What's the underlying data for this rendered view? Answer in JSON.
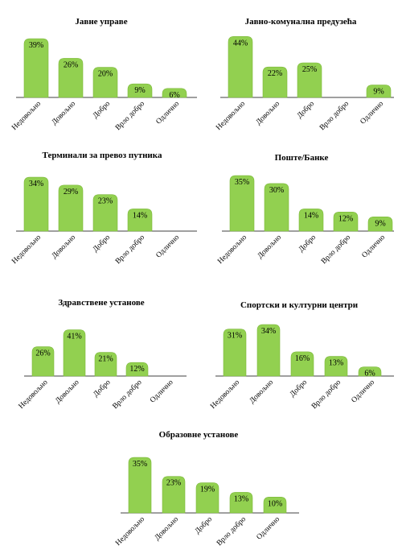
{
  "colors": {
    "bar": "#92d050",
    "bar_stroke": "#7cb83a",
    "axis": "#000000"
  },
  "chart_data": [
    {
      "type": "bar",
      "title": "Јавне управе",
      "categories": [
        "Недовољно",
        "Довољно",
        "Добро",
        "Врло добро",
        "Одлично"
      ],
      "values": [
        39,
        26,
        20,
        9,
        6
      ],
      "labels": [
        "39%",
        "26%",
        "20%",
        "9%",
        "6%"
      ],
      "ylim": [
        0,
        45
      ],
      "grid": false,
      "legend": "none"
    },
    {
      "type": "bar",
      "title": "Јавно-комунална предузећа",
      "categories": [
        "Недовољно",
        "Довољно",
        "Добро",
        "Врло добро",
        "Одлично"
      ],
      "values": [
        44,
        22,
        25,
        0,
        9
      ],
      "labels": [
        "44%",
        "22%",
        "25%",
        "",
        "9%"
      ],
      "ylim": [
        0,
        45
      ],
      "grid": false,
      "legend": "none"
    },
    {
      "type": "bar",
      "title": "Терминали за превоз путника",
      "categories": [
        "Недовољно",
        "Довољно",
        "Добро",
        "Врло добро",
        "Одлично"
      ],
      "values": [
        34,
        29,
        23,
        14,
        0
      ],
      "labels": [
        "34%",
        "29%",
        "23%",
        "14%",
        ""
      ],
      "ylim": [
        0,
        45
      ],
      "grid": false,
      "legend": "none"
    },
    {
      "type": "bar",
      "title": "Поште/Банке",
      "categories": [
        "Недовољно",
        "Довољно",
        "Добро",
        "Врло добро",
        "Одлично"
      ],
      "values": [
        35,
        30,
        14,
        12,
        9
      ],
      "labels": [
        "35%",
        "30%",
        "14%",
        "12%",
        "9%"
      ],
      "ylim": [
        0,
        45
      ],
      "grid": false,
      "legend": "none"
    },
    {
      "type": "bar",
      "title": "Здравствене установе",
      "categories": [
        "Недовољно",
        "Довољно",
        "Добро",
        "Врло добро",
        "Одлично"
      ],
      "values": [
        26,
        41,
        21,
        12,
        0
      ],
      "labels": [
        "26%",
        "41%",
        "21%",
        "12%",
        ""
      ],
      "ylim": [
        0,
        45
      ],
      "grid": false,
      "legend": "none"
    },
    {
      "type": "bar",
      "title": "Спортски и културни центри",
      "categories": [
        "Недовољно",
        "Довољно",
        "Добро",
        "Врло добро",
        "Одлично"
      ],
      "values": [
        31,
        34,
        16,
        13,
        6
      ],
      "labels": [
        "31%",
        "34%",
        "16%",
        "13%",
        "6%"
      ],
      "ylim": [
        0,
        45
      ],
      "grid": false,
      "legend": "none"
    },
    {
      "type": "bar",
      "title": "Образовне установе",
      "categories": [
        "Недовољно",
        "Довољно",
        "Добро",
        "Врло добро",
        "Одлично"
      ],
      "values": [
        35,
        23,
        19,
        13,
        10
      ],
      "labels": [
        "35%",
        "23%",
        "19%",
        "13%",
        "10%"
      ],
      "ylim": [
        0,
        45
      ],
      "grid": false,
      "legend": "none"
    }
  ]
}
